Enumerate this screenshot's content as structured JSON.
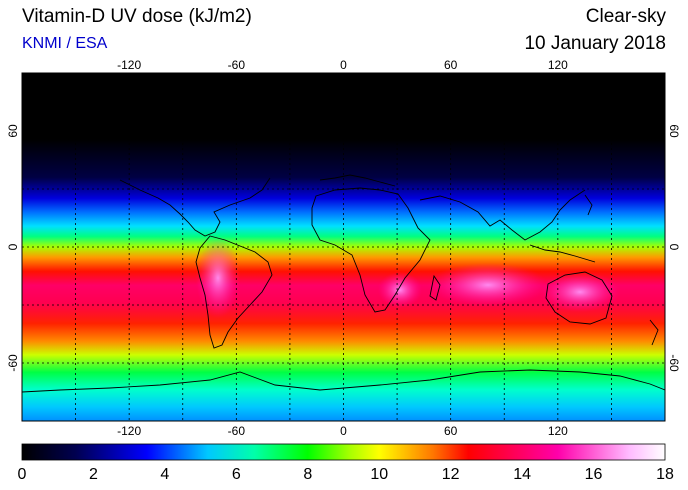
{
  "header": {
    "title": "Vitamin-D UV dose (kJ/m2)",
    "credit": "KNMI / ESA",
    "mode": "Clear-sky",
    "date": "10 January 2018"
  },
  "map": {
    "lon_range": [
      -180,
      180
    ],
    "lat_range": [
      -90,
      90
    ],
    "lon_ticks": [
      -120,
      -60,
      0,
      60,
      120
    ],
    "lat_ticks": [
      60,
      0,
      -60
    ],
    "grid": "dotted every 30 degrees",
    "polar_night_north": "black above ~60N"
  },
  "colorbar": {
    "min": 0,
    "max": 18,
    "tick_labels": [
      "0",
      "2",
      "4",
      "6",
      "8",
      "10",
      "12",
      "14",
      "16",
      "18"
    ],
    "stops": [
      {
        "v": 0,
        "c": "#000000"
      },
      {
        "v": 1.5,
        "c": "#000050"
      },
      {
        "v": 3.5,
        "c": "#0000ff"
      },
      {
        "v": 5.2,
        "c": "#00c8ff"
      },
      {
        "v": 6.5,
        "c": "#00ffaa"
      },
      {
        "v": 8,
        "c": "#00ff00"
      },
      {
        "v": 9.2,
        "c": "#aaff00"
      },
      {
        "v": 10,
        "c": "#ffff00"
      },
      {
        "v": 11.5,
        "c": "#ff7700"
      },
      {
        "v": 12.5,
        "c": "#ff0000"
      },
      {
        "v": 14,
        "c": "#ff0066"
      },
      {
        "v": 15,
        "c": "#ff00aa"
      },
      {
        "v": 17,
        "c": "#ffbbff"
      },
      {
        "v": 18,
        "c": "#ffffff"
      }
    ]
  }
}
